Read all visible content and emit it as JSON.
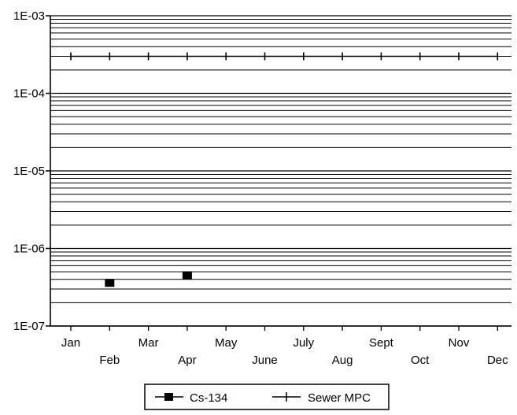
{
  "chart_data": {
    "type": "line",
    "title": "",
    "xlabel": "",
    "ylabel": "",
    "y_scale": "log",
    "ylim": [
      1e-07,
      0.001
    ],
    "y_ticks": [
      "1E-03",
      "1E-04",
      "1E-05",
      "1E-06",
      "1E-07"
    ],
    "categories": [
      "Jan",
      "Feb",
      "Mar",
      "Apr",
      "May",
      "June",
      "July",
      "Aug",
      "Sept",
      "Oct",
      "Nov",
      "Dec"
    ],
    "grid": true,
    "legend_position": "bottom-center",
    "series": [
      {
        "name": "Cs-134",
        "marker": "filled-square",
        "color": "#000000",
        "values": [
          null,
          3.6e-07,
          null,
          4.5e-07,
          null,
          null,
          null,
          null,
          null,
          null,
          null,
          null
        ]
      },
      {
        "name": "Sewer MPC",
        "marker": "plus",
        "color": "#000000",
        "values": [
          0.0003,
          0.0003,
          0.0003,
          0.0003,
          0.0003,
          0.0003,
          0.0003,
          0.0003,
          0.0003,
          0.0003,
          0.0003,
          0.0003
        ]
      }
    ]
  }
}
